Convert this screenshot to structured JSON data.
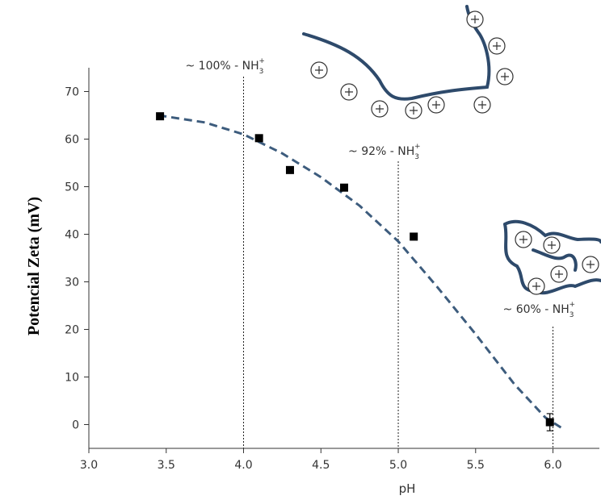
{
  "chart_data": {
    "type": "scatter",
    "x_label": "pH",
    "y_label": "Potencial Zeta (mV)",
    "x": [
      3.46,
      4.1,
      4.3,
      4.65,
      5.1,
      5.98
    ],
    "values": [
      64.8,
      60.2,
      53.5,
      49.8,
      39.5,
      0.5
    ],
    "errors": [
      null,
      null,
      null,
      null,
      null,
      1.8
    ],
    "color": "#000000",
    "curve": {
      "color": "#3d5c7d",
      "x": [
        3.45,
        3.75,
        4.0,
        4.25,
        4.5,
        4.75,
        5.0,
        5.25,
        5.5,
        5.75,
        5.95,
        6.07
      ],
      "values": [
        65,
        63.5,
        61,
        57,
        52,
        46,
        38.5,
        29,
        19,
        8.5,
        1.5,
        -1
      ]
    },
    "xlim": [
      3.0,
      6.3
    ],
    "ylim": [
      -5,
      75
    ],
    "xticks": [
      {
        "value": 3,
        "label": "3.0"
      },
      3.5,
      {
        "value": 4,
        "label": "4.0"
      },
      4.5,
      {
        "value": 5,
        "label": "5.0"
      },
      5.5,
      {
        "value": 6,
        "label": "6.0"
      }
    ],
    "yticks": [
      0,
      10,
      20,
      30,
      40,
      50,
      60,
      70
    ],
    "annotations": [
      {
        "x": 4.0,
        "text": "~ 100%  - NH",
        "sub": "3",
        "sup": "+"
      },
      {
        "x": 5.0,
        "text": "~ 92% - NH",
        "sub": "3",
        "sup": "+"
      },
      {
        "x": 6.0,
        "text": "~ 60% - NH",
        "sub": "3",
        "sup": "+"
      }
    ]
  }
}
